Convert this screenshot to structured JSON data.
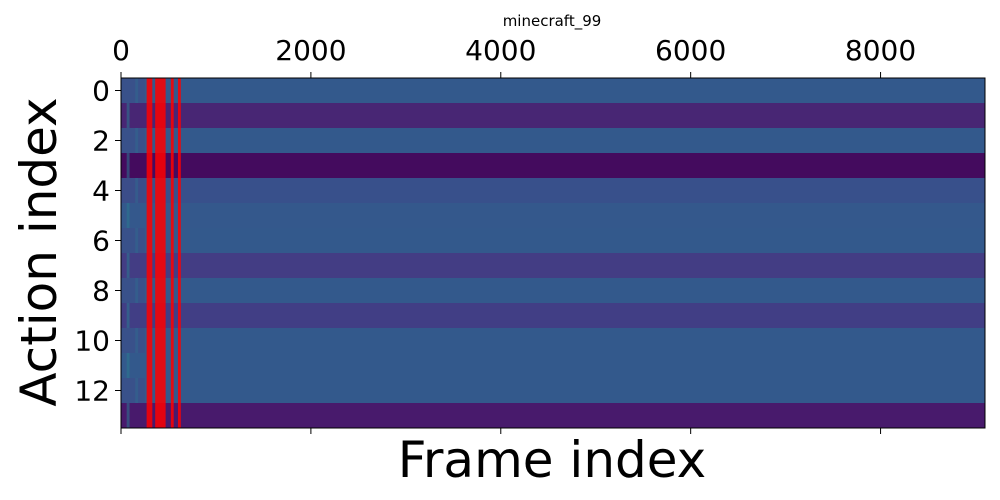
{
  "chart_data": {
    "type": "heatmap",
    "title": "minecraft_99",
    "xlabel": "Frame index",
    "ylabel": "Action index",
    "xlim": [
      0,
      9100
    ],
    "ylim": [
      -0.5,
      13.5
    ],
    "x_ticks": [
      0,
      2000,
      4000,
      6000,
      8000
    ],
    "y_ticks": [
      0,
      2,
      4,
      6,
      8,
      10,
      12
    ],
    "x_tick_labels": [
      "0",
      "2000",
      "4000",
      "6000",
      "8000"
    ],
    "y_tick_labels": [
      "0",
      "2",
      "4",
      "6",
      "8",
      "10",
      "12"
    ],
    "x_tick_position": "top",
    "colormap": "viridis",
    "highlight_color": "#ff0000",
    "rows": [
      {
        "action": 0,
        "color": "#33598c"
      },
      {
        "action": 1,
        "color": "#482674"
      },
      {
        "action": 2,
        "color": "#33598c"
      },
      {
        "action": 3,
        "color": "#440b5e"
      },
      {
        "action": 4,
        "color": "#38508b"
      },
      {
        "action": 5,
        "color": "#34588c"
      },
      {
        "action": 6,
        "color": "#33598c"
      },
      {
        "action": 7,
        "color": "#433d84"
      },
      {
        "action": 8,
        "color": "#33598c"
      },
      {
        "action": 9,
        "color": "#413e85"
      },
      {
        "action": 10,
        "color": "#33598c"
      },
      {
        "action": 11,
        "color": "#33598c"
      },
      {
        "action": 12,
        "color": "#33598c"
      },
      {
        "action": 13,
        "color": "#481a6c"
      }
    ],
    "highlight_frames": [
      {
        "from": 270,
        "to": 330
      },
      {
        "from": 360,
        "to": 470
      },
      {
        "from": 525,
        "to": 555
      },
      {
        "from": 600,
        "to": 630
      }
    ],
    "early_variation_frames": [
      {
        "from": 0,
        "to": 250,
        "color": "#3e4a89"
      },
      {
        "from": 60,
        "to": 90,
        "color": "#2a788e"
      },
      {
        "from": 150,
        "to": 180,
        "color": "#31688e"
      }
    ]
  }
}
